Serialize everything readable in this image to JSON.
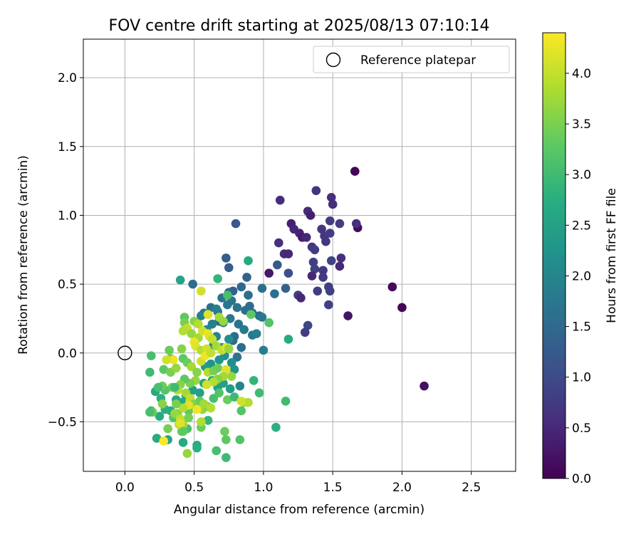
{
  "chart_data": {
    "type": "scatter",
    "title": "FOV centre drift starting at 2025/08/13 07:10:14",
    "xlabel": "Angular distance from reference (arcmin)",
    "ylabel": "Rotation from reference (arcmin)",
    "xlim": [
      -0.3,
      2.82
    ],
    "ylim": [
      -0.86,
      2.28
    ],
    "x_ticks": [
      0.0,
      0.5,
      1.0,
      1.5,
      2.0,
      2.5
    ],
    "y_ticks": [
      -0.5,
      0.0,
      0.5,
      1.0,
      1.5,
      2.0
    ],
    "x_tick_labels": [
      "0.0",
      "0.5",
      "1.0",
      "1.5",
      "2.0",
      "2.5"
    ],
    "y_tick_labels": [
      "−0.5",
      "0.0",
      "0.5",
      "1.0",
      "1.5",
      "2.0"
    ],
    "grid": true,
    "legend": {
      "position": "upper right",
      "label": "Reference platepar"
    },
    "reference_point": {
      "x": 0.0,
      "y": 0.0
    },
    "colorbar": {
      "label": "Hours from first FF file",
      "range": [
        0.0,
        4.4
      ],
      "ticks": [
        0.0,
        0.5,
        1.0,
        1.5,
        2.0,
        2.5,
        3.0,
        3.5,
        4.0
      ],
      "tick_labels": [
        "0.0",
        "0.5",
        "1.0",
        "1.5",
        "2.0",
        "2.5",
        "3.0",
        "3.5",
        "4.0"
      ],
      "colormap": "viridis"
    },
    "points": [
      {
        "x": 1.66,
        "y": 1.32,
        "h": 0.05
      },
      {
        "x": 1.68,
        "y": 0.91,
        "h": 0.1
      },
      {
        "x": 1.93,
        "y": 0.48,
        "h": 0.1
      },
      {
        "x": 2.0,
        "y": 0.33,
        "h": 0.05
      },
      {
        "x": 2.16,
        "y": -0.24,
        "h": 0.2
      },
      {
        "x": 1.61,
        "y": 0.27,
        "h": 0.25
      },
      {
        "x": 1.04,
        "y": 0.58,
        "h": 0.3
      },
      {
        "x": 1.12,
        "y": 1.11,
        "h": 0.55
      },
      {
        "x": 1.38,
        "y": 1.18,
        "h": 0.65
      },
      {
        "x": 1.49,
        "y": 1.13,
        "h": 0.6
      },
      {
        "x": 1.5,
        "y": 1.08,
        "h": 0.6
      },
      {
        "x": 1.32,
        "y": 1.03,
        "h": 0.55
      },
      {
        "x": 1.34,
        "y": 1.0,
        "h": 0.4
      },
      {
        "x": 1.2,
        "y": 0.94,
        "h": 0.4
      },
      {
        "x": 1.22,
        "y": 0.9,
        "h": 0.5
      },
      {
        "x": 1.26,
        "y": 0.87,
        "h": 0.45
      },
      {
        "x": 1.28,
        "y": 0.84,
        "h": 0.35
      },
      {
        "x": 1.31,
        "y": 0.84,
        "h": 0.5
      },
      {
        "x": 1.11,
        "y": 0.8,
        "h": 0.6
      },
      {
        "x": 1.15,
        "y": 0.72,
        "h": 0.55
      },
      {
        "x": 1.18,
        "y": 0.72,
        "h": 0.5
      },
      {
        "x": 1.35,
        "y": 0.77,
        "h": 0.7
      },
      {
        "x": 1.37,
        "y": 0.75,
        "h": 0.8
      },
      {
        "x": 1.42,
        "y": 0.9,
        "h": 0.7
      },
      {
        "x": 1.44,
        "y": 0.85,
        "h": 0.7
      },
      {
        "x": 1.45,
        "y": 0.81,
        "h": 0.7
      },
      {
        "x": 1.48,
        "y": 0.87,
        "h": 0.8
      },
      {
        "x": 1.48,
        "y": 0.96,
        "h": 0.8
      },
      {
        "x": 1.55,
        "y": 0.94,
        "h": 0.8
      },
      {
        "x": 1.67,
        "y": 0.94,
        "h": 0.6
      },
      {
        "x": 1.56,
        "y": 0.69,
        "h": 0.6
      },
      {
        "x": 1.55,
        "y": 0.63,
        "h": 0.5
      },
      {
        "x": 1.49,
        "y": 0.67,
        "h": 0.9
      },
      {
        "x": 1.36,
        "y": 0.66,
        "h": 0.85
      },
      {
        "x": 1.37,
        "y": 0.61,
        "h": 0.85
      },
      {
        "x": 1.35,
        "y": 0.56,
        "h": 0.5
      },
      {
        "x": 1.43,
        "y": 0.6,
        "h": 0.75
      },
      {
        "x": 1.43,
        "y": 0.55,
        "h": 0.75
      },
      {
        "x": 1.47,
        "y": 0.48,
        "h": 0.85
      },
      {
        "x": 1.48,
        "y": 0.45,
        "h": 0.85
      },
      {
        "x": 1.47,
        "y": 0.35,
        "h": 0.85
      },
      {
        "x": 1.39,
        "y": 0.45,
        "h": 0.8
      },
      {
        "x": 1.25,
        "y": 0.42,
        "h": 0.8
      },
      {
        "x": 1.27,
        "y": 0.4,
        "h": 0.5
      },
      {
        "x": 1.32,
        "y": 0.2,
        "h": 0.95
      },
      {
        "x": 1.3,
        "y": 0.15,
        "h": 0.8
      },
      {
        "x": 1.18,
        "y": 0.58,
        "h": 1.1
      },
      {
        "x": 1.1,
        "y": 0.64,
        "h": 1.2
      },
      {
        "x": 1.16,
        "y": 0.47,
        "h": 1.4
      },
      {
        "x": 1.08,
        "y": 0.43,
        "h": 1.6
      },
      {
        "x": 0.99,
        "y": 0.47,
        "h": 1.6
      },
      {
        "x": 0.8,
        "y": 0.94,
        "h": 1.2
      },
      {
        "x": 0.73,
        "y": 0.69,
        "h": 1.3
      },
      {
        "x": 0.75,
        "y": 0.62,
        "h": 1.3
      },
      {
        "x": 0.88,
        "y": 0.55,
        "h": 1.4
      },
      {
        "x": 0.84,
        "y": 0.48,
        "h": 1.5
      },
      {
        "x": 0.89,
        "y": 0.42,
        "h": 1.6
      },
      {
        "x": 0.78,
        "y": 0.45,
        "h": 1.4
      },
      {
        "x": 0.75,
        "y": 0.44,
        "h": 1.5
      },
      {
        "x": 0.7,
        "y": 0.4,
        "h": 1.7
      },
      {
        "x": 0.74,
        "y": 0.35,
        "h": 1.8
      },
      {
        "x": 0.77,
        "y": 0.38,
        "h": 1.7
      },
      {
        "x": 0.81,
        "y": 0.33,
        "h": 1.7
      },
      {
        "x": 0.87,
        "y": 0.31,
        "h": 1.6
      },
      {
        "x": 0.9,
        "y": 0.34,
        "h": 1.6
      },
      {
        "x": 0.92,
        "y": 0.29,
        "h": 1.5
      },
      {
        "x": 0.97,
        "y": 0.27,
        "h": 1.6
      },
      {
        "x": 0.99,
        "y": 0.26,
        "h": 1.8
      },
      {
        "x": 0.76,
        "y": 0.25,
        "h": 1.8
      },
      {
        "x": 0.82,
        "y": 0.21,
        "h": 1.7
      },
      {
        "x": 0.86,
        "y": 0.17,
        "h": 1.8
      },
      {
        "x": 0.92,
        "y": 0.13,
        "h": 1.8
      },
      {
        "x": 0.95,
        "y": 0.14,
        "h": 1.9
      },
      {
        "x": 0.79,
        "y": 0.12,
        "h": 1.6
      },
      {
        "x": 0.78,
        "y": 0.09,
        "h": 1.5
      },
      {
        "x": 0.84,
        "y": 0.04,
        "h": 1.6
      },
      {
        "x": 0.81,
        "y": -0.03,
        "h": 1.7
      },
      {
        "x": 1.0,
        "y": 0.02,
        "h": 1.9
      },
      {
        "x": 0.71,
        "y": 0.22,
        "h": 1.7
      },
      {
        "x": 0.68,
        "y": 0.23,
        "h": 1.5
      },
      {
        "x": 0.67,
        "y": 0.3,
        "h": 1.7
      },
      {
        "x": 0.62,
        "y": 0.33,
        "h": 1.6
      },
      {
        "x": 0.66,
        "y": 0.32,
        "h": 1.9
      },
      {
        "x": 0.6,
        "y": 0.28,
        "h": 1.7
      },
      {
        "x": 0.57,
        "y": 0.29,
        "h": 1.8
      },
      {
        "x": 0.55,
        "y": 0.27,
        "h": 1.9
      },
      {
        "x": 0.63,
        "y": 0.21,
        "h": 1.9
      },
      {
        "x": 0.59,
        "y": 0.17,
        "h": 2.0
      },
      {
        "x": 0.66,
        "y": 0.12,
        "h": 2.0
      },
      {
        "x": 0.64,
        "y": 0.06,
        "h": 2.1
      },
      {
        "x": 0.7,
        "y": 0.04,
        "h": 2.1
      },
      {
        "x": 0.75,
        "y": 0.1,
        "h": 2.2
      },
      {
        "x": 0.72,
        "y": -0.02,
        "h": 2.2
      },
      {
        "x": 0.68,
        "y": -0.05,
        "h": 2.3
      },
      {
        "x": 0.62,
        "y": -0.08,
        "h": 2.3
      },
      {
        "x": 0.58,
        "y": -0.1,
        "h": 2.4
      },
      {
        "x": 0.77,
        "y": -0.07,
        "h": 2.2
      },
      {
        "x": 0.79,
        "y": -0.12,
        "h": 2.3
      },
      {
        "x": 0.83,
        "y": -0.24,
        "h": 2.0
      },
      {
        "x": 0.76,
        "y": -0.26,
        "h": 2.4
      },
      {
        "x": 0.71,
        "y": -0.22,
        "h": 2.5
      },
      {
        "x": 0.67,
        "y": -0.25,
        "h": 2.5
      },
      {
        "x": 0.63,
        "y": -0.2,
        "h": 2.6
      },
      {
        "x": 0.57,
        "y": -0.22,
        "h": 2.6
      },
      {
        "x": 0.54,
        "y": -0.29,
        "h": 2.5
      },
      {
        "x": 0.49,
        "y": -0.27,
        "h": 2.5
      },
      {
        "x": 0.44,
        "y": -0.31,
        "h": 2.6
      },
      {
        "x": 0.41,
        "y": -0.36,
        "h": 2.7
      },
      {
        "x": 0.37,
        "y": -0.34,
        "h": 2.6
      },
      {
        "x": 0.33,
        "y": -0.42,
        "h": 2.7
      },
      {
        "x": 0.29,
        "y": -0.41,
        "h": 2.8
      },
      {
        "x": 0.25,
        "y": -0.46,
        "h": 2.7
      },
      {
        "x": 0.26,
        "y": -0.33,
        "h": 2.8
      },
      {
        "x": 0.22,
        "y": -0.28,
        "h": 2.7
      },
      {
        "x": 0.19,
        "y": -0.42,
        "h": 3.0
      },
      {
        "x": 0.23,
        "y": -0.62,
        "h": 2.7
      },
      {
        "x": 0.31,
        "y": -0.63,
        "h": 2.6
      },
      {
        "x": 0.42,
        "y": -0.65,
        "h": 2.7
      },
      {
        "x": 0.52,
        "y": -0.67,
        "h": 2.7
      },
      {
        "x": 0.52,
        "y": -0.69,
        "h": 2.8
      },
      {
        "x": 0.73,
        "y": -0.76,
        "h": 3.0
      },
      {
        "x": 0.66,
        "y": -0.71,
        "h": 3.1
      },
      {
        "x": 0.73,
        "y": -0.63,
        "h": 3.3
      },
      {
        "x": 0.72,
        "y": -0.57,
        "h": 3.4
      },
      {
        "x": 0.83,
        "y": -0.63,
        "h": 3.2
      },
      {
        "x": 0.6,
        "y": -0.49,
        "h": 2.9
      },
      {
        "x": 0.55,
        "y": -0.54,
        "h": 3.4
      },
      {
        "x": 0.45,
        "y": -0.55,
        "h": 3.1
      },
      {
        "x": 0.41,
        "y": -0.57,
        "h": 3.4
      },
      {
        "x": 0.4,
        "y": -0.5,
        "h": 3.5
      },
      {
        "x": 0.38,
        "y": -0.44,
        "h": 3.6
      },
      {
        "x": 0.35,
        "y": -0.47,
        "h": 3.2
      },
      {
        "x": 0.46,
        "y": -0.42,
        "h": 3.3
      },
      {
        "x": 0.51,
        "y": -0.39,
        "h": 3.6
      },
      {
        "x": 0.56,
        "y": -0.41,
        "h": 3.7
      },
      {
        "x": 0.6,
        "y": -0.39,
        "h": 3.5
      },
      {
        "x": 0.64,
        "y": -0.33,
        "h": 3.1
      },
      {
        "x": 0.68,
        "y": -0.29,
        "h": 3.2
      },
      {
        "x": 0.74,
        "y": -0.34,
        "h": 3.4
      },
      {
        "x": 0.79,
        "y": -0.32,
        "h": 3.0
      },
      {
        "x": 0.86,
        "y": -0.36,
        "h": 3.8
      },
      {
        "x": 0.84,
        "y": -0.42,
        "h": 3.2
      },
      {
        "x": 0.89,
        "y": -0.36,
        "h": 3.9
      },
      {
        "x": 0.84,
        "y": -0.35,
        "h": 4.1
      },
      {
        "x": 0.97,
        "y": -0.29,
        "h": 3.0
      },
      {
        "x": 0.93,
        "y": -0.2,
        "h": 2.9
      },
      {
        "x": 1.16,
        "y": -0.35,
        "h": 3.0
      },
      {
        "x": 1.09,
        "y": -0.54,
        "h": 2.8
      },
      {
        "x": 1.18,
        "y": 0.1,
        "h": 2.7
      },
      {
        "x": 1.04,
        "y": 0.22,
        "h": 3.2
      },
      {
        "x": 0.91,
        "y": 0.28,
        "h": 3.3
      },
      {
        "x": 0.89,
        "y": 0.67,
        "h": 2.7
      },
      {
        "x": 0.74,
        "y": 0.42,
        "h": 3.1
      },
      {
        "x": 0.67,
        "y": 0.54,
        "h": 2.9
      },
      {
        "x": 0.4,
        "y": 0.53,
        "h": 2.6
      },
      {
        "x": 0.49,
        "y": 0.5,
        "h": 1.6
      },
      {
        "x": 0.55,
        "y": 0.45,
        "h": 4.1
      },
      {
        "x": 0.43,
        "y": 0.26,
        "h": 3.3
      },
      {
        "x": 0.43,
        "y": 0.22,
        "h": 3.5
      },
      {
        "x": 0.5,
        "y": 0.23,
        "h": 3.6
      },
      {
        "x": 0.53,
        "y": 0.21,
        "h": 3.9
      },
      {
        "x": 0.6,
        "y": 0.28,
        "h": 4.2
      },
      {
        "x": 0.45,
        "y": 0.18,
        "h": 4.0
      },
      {
        "x": 0.42,
        "y": 0.16,
        "h": 3.9
      },
      {
        "x": 0.48,
        "y": 0.14,
        "h": 3.7
      },
      {
        "x": 0.53,
        "y": 0.11,
        "h": 3.8
      },
      {
        "x": 0.56,
        "y": 0.16,
        "h": 4.1
      },
      {
        "x": 0.6,
        "y": 0.14,
        "h": 4.3
      },
      {
        "x": 0.61,
        "y": 0.12,
        "h": 4.2
      },
      {
        "x": 0.68,
        "y": 0.26,
        "h": 3.8
      },
      {
        "x": 0.71,
        "y": 0.23,
        "h": 3.7
      },
      {
        "x": 0.63,
        "y": 0.1,
        "h": 4.0
      },
      {
        "x": 0.5,
        "y": 0.08,
        "h": 4.3
      },
      {
        "x": 0.51,
        "y": 0.05,
        "h": 4.2
      },
      {
        "x": 0.55,
        "y": 0.02,
        "h": 3.9
      },
      {
        "x": 0.59,
        "y": 0.03,
        "h": 4.1
      },
      {
        "x": 0.66,
        "y": 0.05,
        "h": 3.8
      },
      {
        "x": 0.7,
        "y": 0.02,
        "h": 4.0
      },
      {
        "x": 0.73,
        "y": 0.04,
        "h": 4.2
      },
      {
        "x": 0.75,
        "y": 0.03,
        "h": 3.7
      },
      {
        "x": 0.41,
        "y": 0.03,
        "h": 3.6
      },
      {
        "x": 0.32,
        "y": 0.02,
        "h": 3.4
      },
      {
        "x": 0.33,
        "y": -0.04,
        "h": 3.5
      },
      {
        "x": 0.35,
        "y": -0.05,
        "h": 4.3
      },
      {
        "x": 0.3,
        "y": -0.05,
        "h": 4.1
      },
      {
        "x": 0.28,
        "y": -0.12,
        "h": 3.3
      },
      {
        "x": 0.33,
        "y": -0.14,
        "h": 3.5
      },
      {
        "x": 0.37,
        "y": -0.11,
        "h": 3.7
      },
      {
        "x": 0.42,
        "y": -0.04,
        "h": 3.3
      },
      {
        "x": 0.45,
        "y": -0.07,
        "h": 3.4
      },
      {
        "x": 0.48,
        "y": -0.1,
        "h": 3.8
      },
      {
        "x": 0.52,
        "y": -0.14,
        "h": 3.6
      },
      {
        "x": 0.55,
        "y": -0.06,
        "h": 4.1
      },
      {
        "x": 0.58,
        "y": -0.02,
        "h": 4.3
      },
      {
        "x": 0.62,
        "y": 0.0,
        "h": 4.0
      },
      {
        "x": 0.6,
        "y": -0.14,
        "h": 3.9
      },
      {
        "x": 0.64,
        "y": -0.13,
        "h": 3.5
      },
      {
        "x": 0.67,
        "y": -0.11,
        "h": 3.4
      },
      {
        "x": 0.73,
        "y": -0.12,
        "h": 4.2
      },
      {
        "x": 0.77,
        "y": -0.17,
        "h": 3.7
      },
      {
        "x": 0.71,
        "y": -0.17,
        "h": 3.8
      },
      {
        "x": 0.67,
        "y": -0.19,
        "h": 3.6
      },
      {
        "x": 0.64,
        "y": -0.21,
        "h": 3.9
      },
      {
        "x": 0.59,
        "y": -0.23,
        "h": 4.1
      },
      {
        "x": 0.51,
        "y": -0.2,
        "h": 3.7
      },
      {
        "x": 0.47,
        "y": -0.22,
        "h": 3.5
      },
      {
        "x": 0.43,
        "y": -0.19,
        "h": 3.3
      },
      {
        "x": 0.4,
        "y": -0.23,
        "h": 3.6
      },
      {
        "x": 0.38,
        "y": -0.27,
        "h": 3.9
      },
      {
        "x": 0.34,
        "y": -0.25,
        "h": 3.5
      },
      {
        "x": 0.29,
        "y": -0.27,
        "h": 3.2
      },
      {
        "x": 0.27,
        "y": -0.24,
        "h": 3.4
      },
      {
        "x": 0.44,
        "y": -0.29,
        "h": 3.8
      },
      {
        "x": 0.47,
        "y": -0.33,
        "h": 4.0
      },
      {
        "x": 0.5,
        "y": -0.37,
        "h": 3.6
      },
      {
        "x": 0.54,
        "y": -0.35,
        "h": 3.4
      },
      {
        "x": 0.57,
        "y": -0.37,
        "h": 3.8
      },
      {
        "x": 0.62,
        "y": -0.4,
        "h": 3.9
      },
      {
        "x": 0.52,
        "y": -0.41,
        "h": 4.3
      },
      {
        "x": 0.46,
        "y": -0.38,
        "h": 4.2
      },
      {
        "x": 0.42,
        "y": -0.4,
        "h": 3.9
      },
      {
        "x": 0.37,
        "y": -0.37,
        "h": 3.5
      },
      {
        "x": 0.36,
        "y": -0.44,
        "h": 3.7
      },
      {
        "x": 0.4,
        "y": -0.48,
        "h": 4.0
      },
      {
        "x": 0.42,
        "y": -0.52,
        "h": 3.8
      },
      {
        "x": 0.46,
        "y": -0.47,
        "h": 3.5
      },
      {
        "x": 0.55,
        "y": -0.5,
        "h": 3.9
      },
      {
        "x": 0.27,
        "y": -0.37,
        "h": 3.6
      },
      {
        "x": 0.2,
        "y": -0.43,
        "h": 3.4
      },
      {
        "x": 0.18,
        "y": -0.43,
        "h": 3.1
      },
      {
        "x": 0.18,
        "y": -0.14,
        "h": 3.0
      },
      {
        "x": 0.19,
        "y": -0.02,
        "h": 3.1
      },
      {
        "x": 0.39,
        "y": -0.52,
        "h": 4.0
      },
      {
        "x": 0.4,
        "y": -0.51,
        "h": 4.2
      },
      {
        "x": 0.28,
        "y": -0.64,
        "h": 4.4
      },
      {
        "x": 0.31,
        "y": -0.55,
        "h": 3.5
      },
      {
        "x": 0.45,
        "y": -0.73,
        "h": 3.7
      },
      {
        "x": 0.42,
        "y": -0.57,
        "h": 3.3
      },
      {
        "x": 0.36,
        "y": -0.25,
        "h": 3.0
      },
      {
        "x": 0.24,
        "y": -0.25,
        "h": 3.1
      }
    ]
  }
}
